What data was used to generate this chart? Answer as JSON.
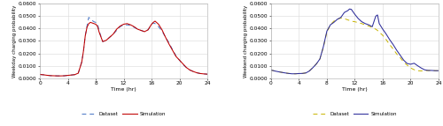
{
  "weekday_dataset_x": [
    0,
    0.25,
    0.5,
    0.75,
    1,
    1.5,
    2,
    2.5,
    3,
    3.5,
    4,
    4.5,
    5,
    5.5,
    6,
    6.25,
    6.5,
    6.75,
    7,
    7.25,
    7.5,
    7.75,
    8,
    8.25,
    8.5,
    9,
    9.5,
    10,
    10.5,
    11,
    11.5,
    12,
    12.5,
    13,
    13.5,
    14,
    14.5,
    15,
    15.5,
    16,
    16.25,
    16.5,
    17,
    17.5,
    18,
    18.5,
    19,
    19.5,
    20,
    20.5,
    21,
    21.5,
    22,
    22.5,
    23,
    23.5,
    24
  ],
  "weekday_dataset_y": [
    0.003,
    0.0028,
    0.0027,
    0.0025,
    0.0023,
    0.002,
    0.0019,
    0.0018,
    0.0018,
    0.0019,
    0.0022,
    0.0025,
    0.0028,
    0.004,
    0.013,
    0.022,
    0.034,
    0.042,
    0.049,
    0.048,
    0.0465,
    0.0455,
    0.045,
    0.044,
    0.038,
    0.0295,
    0.0305,
    0.033,
    0.0355,
    0.0385,
    0.0415,
    0.043,
    0.043,
    0.0425,
    0.041,
    0.0395,
    0.0385,
    0.0375,
    0.039,
    0.0435,
    0.0445,
    0.044,
    0.0415,
    0.038,
    0.033,
    0.0285,
    0.023,
    0.018,
    0.0145,
    0.011,
    0.0085,
    0.0065,
    0.0053,
    0.0043,
    0.0037,
    0.0034,
    0.0032
  ],
  "weekday_sim_x": [
    0,
    0.25,
    0.5,
    0.75,
    1,
    1.5,
    2,
    2.5,
    3,
    3.5,
    4,
    4.5,
    5,
    5.5,
    6,
    6.25,
    6.5,
    6.75,
    7,
    7.25,
    7.5,
    7.75,
    8,
    8.25,
    8.5,
    9,
    9.5,
    10,
    10.5,
    11,
    11.5,
    12,
    12.5,
    13,
    13.5,
    14,
    14.5,
    15,
    15.5,
    16,
    16.25,
    16.5,
    17,
    17.5,
    18,
    18.5,
    19,
    19.5,
    20,
    20.5,
    21,
    21.5,
    22,
    22.5,
    23,
    23.5,
    24
  ],
  "weekday_sim_y": [
    0.003,
    0.0028,
    0.0027,
    0.0025,
    0.0023,
    0.002,
    0.0019,
    0.0018,
    0.0018,
    0.0019,
    0.0022,
    0.0025,
    0.0028,
    0.004,
    0.013,
    0.022,
    0.034,
    0.041,
    0.044,
    0.045,
    0.0445,
    0.044,
    0.0435,
    0.042,
    0.037,
    0.0295,
    0.0305,
    0.033,
    0.0355,
    0.0395,
    0.042,
    0.0435,
    0.044,
    0.043,
    0.0415,
    0.0395,
    0.0385,
    0.0375,
    0.039,
    0.0435,
    0.045,
    0.046,
    0.0435,
    0.039,
    0.033,
    0.0275,
    0.0225,
    0.0175,
    0.0145,
    0.0115,
    0.0085,
    0.0065,
    0.0053,
    0.0043,
    0.0037,
    0.0034,
    0.0032
  ],
  "weekend_dataset_x": [
    0,
    0.5,
    1,
    1.5,
    2,
    2.5,
    3,
    3.5,
    4,
    4.5,
    5,
    5.5,
    6,
    6.5,
    7,
    7.5,
    8,
    8.5,
    9,
    9.5,
    10,
    10.5,
    11,
    11.5,
    12,
    12.5,
    13,
    13.5,
    14,
    14.5,
    15,
    15.25,
    15.5,
    16,
    16.5,
    17,
    17.5,
    18,
    18.5,
    19,
    19.5,
    20,
    20.5,
    21,
    21.5,
    22,
    22.5,
    23,
    23.5,
    24
  ],
  "weekend_dataset_y": [
    0.0065,
    0.0058,
    0.0052,
    0.0047,
    0.0042,
    0.0038,
    0.0035,
    0.0035,
    0.0037,
    0.0038,
    0.0042,
    0.0058,
    0.0085,
    0.0115,
    0.0155,
    0.025,
    0.037,
    0.043,
    0.046,
    0.0475,
    0.0485,
    0.048,
    0.047,
    0.046,
    0.0455,
    0.0448,
    0.044,
    0.043,
    0.042,
    0.0408,
    0.0395,
    0.0385,
    0.0372,
    0.0345,
    0.031,
    0.027,
    0.0235,
    0.0195,
    0.0165,
    0.013,
    0.0105,
    0.0082,
    0.0068,
    0.006,
    0.0058,
    0.006,
    0.0062,
    0.0062,
    0.006,
    0.006
  ],
  "weekend_sim_x": [
    0,
    0.5,
    1,
    1.5,
    2,
    2.5,
    3,
    3.5,
    4,
    4.5,
    5,
    5.5,
    6,
    6.5,
    7,
    7.5,
    8,
    8.5,
    9,
    9.5,
    10,
    10.5,
    11,
    11.25,
    11.5,
    12,
    12.5,
    13,
    13.5,
    14,
    14.5,
    15,
    15.25,
    15.5,
    16,
    16.5,
    17,
    17.5,
    18,
    18.5,
    19,
    19.5,
    20,
    20.5,
    21,
    21.5,
    22,
    22.5,
    23,
    23.5,
    24
  ],
  "weekend_sim_y": [
    0.0065,
    0.0058,
    0.0052,
    0.0047,
    0.0042,
    0.0038,
    0.0035,
    0.0035,
    0.0037,
    0.0038,
    0.0042,
    0.0058,
    0.0085,
    0.0115,
    0.0155,
    0.0255,
    0.038,
    0.043,
    0.045,
    0.0475,
    0.049,
    0.053,
    0.0545,
    0.0558,
    0.0555,
    0.0515,
    0.048,
    0.0455,
    0.044,
    0.043,
    0.0415,
    0.05,
    0.051,
    0.044,
    0.0395,
    0.0355,
    0.031,
    0.027,
    0.0225,
    0.0185,
    0.0145,
    0.0118,
    0.0112,
    0.012,
    0.01,
    0.0082,
    0.0067,
    0.0062,
    0.0062,
    0.006,
    0.006
  ],
  "ylim": [
    0,
    0.06
  ],
  "yticks": [
    0.0,
    0.01,
    0.02,
    0.03,
    0.04,
    0.05,
    0.06
  ],
  "xticks": [
    0,
    4,
    8,
    12,
    16,
    20,
    24
  ],
  "xlabel": "Time (hr)",
  "ylabel_left": "Weekday charging probability",
  "ylabel_right": "Weekend charging probability",
  "dataset_color_left": "#4472C4",
  "sim_color_left": "#C00000",
  "dataset_color_right": "#C8B400",
  "sim_color_right": "#2E2E9A",
  "bg_color": "#FFFFFF",
  "grid_color": "#D9D9D9"
}
